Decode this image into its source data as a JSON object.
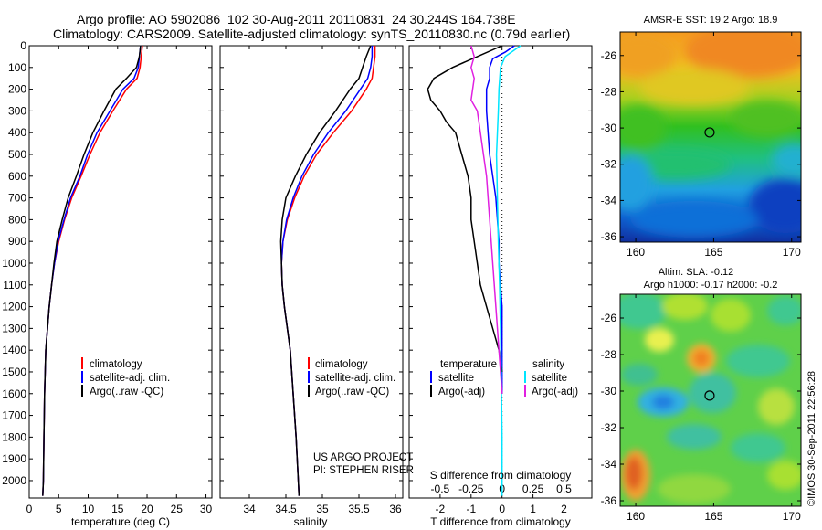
{
  "header": {
    "line1": "Argo profile: AO 5902086_102 30-Aug-2011 20110831_24 30.244S 164.738E",
    "line2": "Climatology: CARS2009. Satellite-adjusted climatology: synTS_20110830.nc (0.79d earlier)"
  },
  "colors": {
    "climatology": "#ff0000",
    "satellite": "#0000ff",
    "argo": "#000000",
    "sal_satellite": "#00e5ff",
    "sal_argo": "#e020e0"
  },
  "chart_data": [
    {
      "type": "line",
      "panel": "temperature",
      "xlabel": "temperature (deg C)",
      "xlim": [
        0,
        31
      ],
      "xticks": [
        "0",
        "5",
        "10",
        "15",
        "20",
        "25",
        "30"
      ],
      "ylim": [
        0,
        2080
      ],
      "yticks": [
        "0",
        "100",
        "200",
        "300",
        "400",
        "500",
        "600",
        "700",
        "800",
        "900",
        "1000",
        "1100",
        "1200",
        "1300",
        "1400",
        "1500",
        "1600",
        "1700",
        "1800",
        "1900",
        "2000"
      ],
      "legend": [
        "climatology",
        "satellite-adj. clim.",
        "Argo(..raw -QC)"
      ],
      "series": [
        {
          "name": "climatology",
          "color": "climatology",
          "x": [
            19.2,
            19.0,
            18.8,
            18.3,
            16.5,
            14.2,
            12.0,
            10.3,
            8.8,
            7.2,
            6.0,
            5.0,
            4.3,
            3.8,
            3.4,
            3.1,
            2.8,
            2.6,
            2.5,
            2.4,
            2.3
          ],
          "y": [
            0,
            50,
            100,
            150,
            200,
            300,
            400,
            500,
            600,
            700,
            800,
            900,
            1000,
            1100,
            1200,
            1300,
            1400,
            1600,
            1800,
            2000,
            2070
          ]
        },
        {
          "name": "satellite-adj. clim.",
          "color": "satellite",
          "x": [
            18.9,
            18.7,
            18.5,
            17.8,
            15.9,
            13.7,
            11.5,
            9.9,
            8.6,
            7.0,
            5.9,
            4.9,
            4.3,
            3.8,
            3.4,
            3.1,
            2.8,
            2.6,
            2.5,
            2.4,
            2.3
          ],
          "y": [
            0,
            50,
            100,
            150,
            200,
            300,
            400,
            500,
            600,
            700,
            800,
            900,
            1000,
            1100,
            1200,
            1300,
            1400,
            1600,
            1800,
            2000,
            2070
          ]
        },
        {
          "name": "Argo(..raw -QC)",
          "color": "argo",
          "x": [
            18.9,
            18.7,
            18.2,
            16.5,
            14.7,
            12.7,
            10.8,
            9.3,
            8.0,
            6.6,
            5.6,
            4.7,
            4.2,
            3.8,
            3.4,
            3.1,
            2.8,
            2.6,
            2.5,
            2.4,
            2.3
          ],
          "y": [
            0,
            50,
            100,
            150,
            200,
            300,
            400,
            500,
            600,
            700,
            800,
            900,
            1000,
            1100,
            1200,
            1300,
            1400,
            1600,
            1800,
            2000,
            2070
          ]
        }
      ]
    },
    {
      "type": "line",
      "panel": "salinity",
      "xlabel": "salinity",
      "xlim": [
        33.6,
        36.1
      ],
      "xticks": [
        "34",
        "34.5",
        "35",
        "35.5",
        "36"
      ],
      "ylim": [
        0,
        2080
      ],
      "legend": [
        "climatology",
        "satellite-adj. clim.",
        "Argo(..raw -QC)"
      ],
      "annotation": [
        "US ARGO PROJECT",
        "PI: STEPHEN RISER"
      ],
      "series": [
        {
          "name": "climatology",
          "color": "climatology",
          "x": [
            35.72,
            35.72,
            35.7,
            35.68,
            35.6,
            35.4,
            35.15,
            34.92,
            34.75,
            34.62,
            34.52,
            34.46,
            34.44,
            34.45,
            34.48,
            34.52,
            34.56,
            34.6,
            34.64,
            34.67,
            34.68
          ],
          "y": [
            0,
            50,
            100,
            150,
            200,
            300,
            400,
            500,
            600,
            700,
            800,
            900,
            1000,
            1100,
            1200,
            1300,
            1400,
            1600,
            1800,
            2000,
            2070
          ]
        },
        {
          "name": "satellite-adj. clim.",
          "color": "satellite",
          "x": [
            35.68,
            35.68,
            35.66,
            35.62,
            35.52,
            35.32,
            35.08,
            34.88,
            34.72,
            34.6,
            34.51,
            34.46,
            34.44,
            34.45,
            34.48,
            34.52,
            34.56,
            34.6,
            34.64,
            34.67,
            34.68
          ],
          "y": [
            0,
            50,
            100,
            150,
            200,
            300,
            400,
            500,
            600,
            700,
            800,
            900,
            1000,
            1100,
            1200,
            1300,
            1400,
            1600,
            1800,
            2000,
            2070
          ]
        },
        {
          "name": "Argo(..raw -QC)",
          "color": "argo",
          "x": [
            35.66,
            35.6,
            35.55,
            35.5,
            35.38,
            35.18,
            34.96,
            34.78,
            34.63,
            34.5,
            34.45,
            34.43,
            34.44,
            34.45,
            34.48,
            34.52,
            34.56,
            34.6,
            34.64,
            34.67,
            34.68
          ],
          "y": [
            0,
            50,
            100,
            150,
            200,
            300,
            400,
            500,
            600,
            700,
            800,
            900,
            1000,
            1100,
            1200,
            1300,
            1400,
            1600,
            1800,
            2000,
            2070
          ]
        }
      ]
    },
    {
      "type": "line",
      "panel": "difference",
      "xlabel": "T difference from climatology",
      "xlabel2": "S difference from climatology",
      "xlim": [
        -3.0,
        2.9
      ],
      "xticks": [
        "-2",
        "-1",
        "0",
        "1",
        "2"
      ],
      "xticks2": [
        "-0.5",
        "-0.25",
        "0",
        "0.25",
        "0.5"
      ],
      "ylim": [
        0,
        2080
      ],
      "legend_left_title": "temperature",
      "legend_right_title": "salinity",
      "legend_left": [
        "satellite",
        "Argo(-adj)"
      ],
      "legend_right": [
        "satellite",
        "Argo(-adj)"
      ],
      "series": [
        {
          "name": "satellite",
          "color": "satellite",
          "x": [
            0.4,
            0.1,
            -0.3,
            -0.4,
            -0.4,
            -0.5,
            -0.5,
            -0.45,
            -0.4,
            -0.3,
            -0.2,
            -0.15,
            -0.1,
            -0.1,
            -0.05,
            0,
            0,
            0,
            0
          ],
          "y": [
            0,
            30,
            60,
            100,
            150,
            200,
            300,
            400,
            500,
            600,
            700,
            800,
            900,
            1000,
            1100,
            1200,
            1300,
            1400,
            1600
          ]
        },
        {
          "name": "Argo(-adj)",
          "color": "argo",
          "x": [
            0,
            -0.8,
            -1.6,
            -2.2,
            -2.4,
            -2.3,
            -2.0,
            -1.8,
            -1.5,
            -1.3,
            -1.1,
            -1.0,
            -1.0,
            -0.9,
            -0.8,
            -0.7,
            -0.5,
            -0.3,
            -0.2,
            -0.1,
            0
          ],
          "y": [
            0,
            50,
            100,
            150,
            200,
            250,
            300,
            350,
            400,
            500,
            600,
            700,
            800,
            900,
            1000,
            1100,
            1200,
            1300,
            1350,
            1400,
            1500
          ]
        },
        {
          "name": "sal satellite",
          "color": "sal_satellite",
          "x": [
            0.6,
            0.1,
            -0.05,
            -0.1,
            -0.12,
            -0.15,
            -0.18,
            -0.15,
            -0.12,
            -0.08,
            -0.05,
            -0.03,
            0,
            0
          ],
          "y": [
            0,
            50,
            100,
            200,
            300,
            400,
            500,
            700,
            900,
            1100,
            1300,
            1500,
            1800,
            2070
          ]
        },
        {
          "name": "sal Argo(-adj)",
          "color": "sal_argo",
          "x": [
            -1.0,
            -0.9,
            -1.0,
            -0.9,
            -1.0,
            -0.8,
            -0.7,
            -0.5,
            -0.4,
            -0.3,
            -0.2,
            -0.1,
            0
          ],
          "y": [
            0,
            50,
            100,
            150,
            250,
            300,
            400,
            600,
            800,
            1000,
            1200,
            1400,
            1600
          ]
        }
      ]
    },
    {
      "type": "heatmap",
      "panel": "sst-map",
      "title": "AMSR-E SST: 19.2  Argo: 18.9",
      "xlim": [
        159,
        170.6
      ],
      "ylim": [
        -36.3,
        -24.7
      ],
      "xticks": [
        "160",
        "165",
        "170"
      ],
      "yticks": [
        "-26",
        "-28",
        "-30",
        "-32",
        "-34",
        "-36"
      ],
      "marker": {
        "lon": 164.738,
        "lat": -30.244
      }
    },
    {
      "type": "heatmap",
      "panel": "sla-map",
      "title": "Altim. SLA: -0.12",
      "subtitle": "Argo h1000: -0.17  h2000: -0.2",
      "xlim": [
        159,
        170.6
      ],
      "ylim": [
        -36.3,
        -24.7
      ],
      "xticks": [
        "160",
        "165",
        "170"
      ],
      "yticks": [
        "-26",
        "-28",
        "-30",
        "-32",
        "-34",
        "-36"
      ],
      "marker": {
        "lon": 164.738,
        "lat": -30.244
      }
    }
  ],
  "footer": {
    "stamp": "©IMOS 30-Sep-2011 22:56:28"
  }
}
